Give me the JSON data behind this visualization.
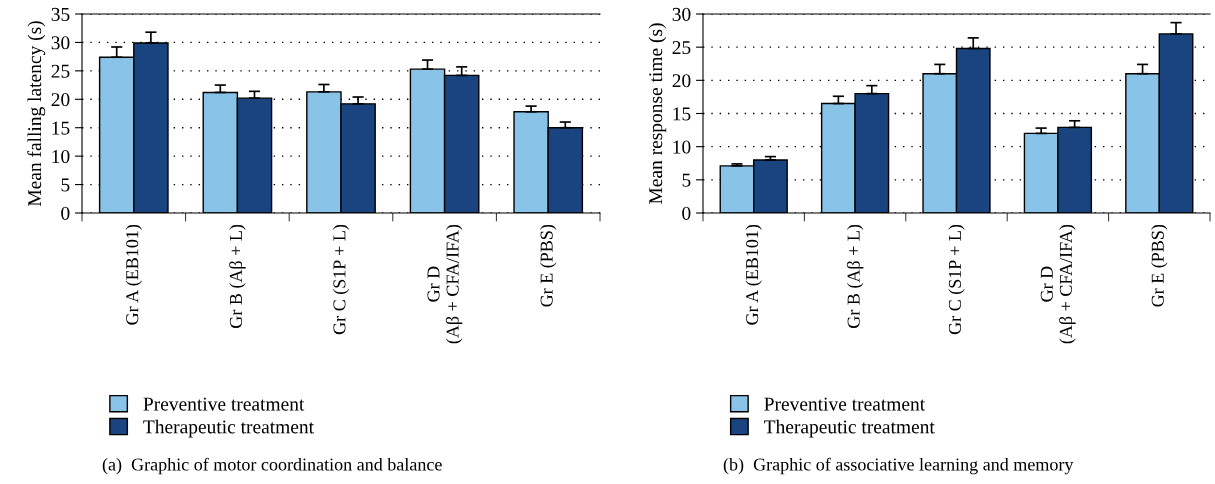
{
  "chart_data": [
    {
      "type": "bar",
      "ylabel": "Mean falling latency (s)",
      "categories": [
        "Gr A (EB101)",
        "Gr B (Aβ + L)",
        "Gr C (S1P + L)",
        "Gr D\n(Aβ + CFA/IFA)",
        "Gr E (PBS)"
      ],
      "series": [
        {
          "name": "Preventive treatment",
          "color": "#89c3e8",
          "values": [
            27.4,
            21.2,
            21.3,
            25.3,
            17.8
          ],
          "errors": [
            1.8,
            1.3,
            1.3,
            1.6,
            1.0
          ]
        },
        {
          "name": "Therapeutic treatment",
          "color": "#1a4480",
          "values": [
            29.9,
            20.2,
            19.2,
            24.2,
            15.0
          ],
          "errors": [
            1.9,
            1.2,
            1.2,
            1.5,
            1.0
          ]
        }
      ],
      "ylim": [
        0,
        35
      ],
      "yticks": [
        0,
        5,
        10,
        15,
        20,
        25,
        30,
        35
      ],
      "grid": "y",
      "legend": "bottom",
      "annotations": [
        "(a)  Graphic of motor coordination and balance"
      ]
    },
    {
      "type": "bar",
      "ylabel": "Mean response time (s)",
      "categories": [
        "Gr A (EB101)",
        "Gr B (Aβ + L)",
        "Gr C (S1P + L)",
        "Gr D\n(Aβ + CFA/IFA)",
        "Gr E (PBS)"
      ],
      "series": [
        {
          "name": "Preventive treatment",
          "color": "#89c3e8",
          "values": [
            7.1,
            16.5,
            21.0,
            12.0,
            21.0
          ],
          "errors": [
            0.3,
            1.1,
            1.4,
            0.8,
            1.4
          ]
        },
        {
          "name": "Therapeutic treatment",
          "color": "#1a4480",
          "values": [
            8.0,
            18.0,
            24.8,
            12.9,
            27.0
          ],
          "errors": [
            0.5,
            1.2,
            1.6,
            1.0,
            1.7
          ]
        }
      ],
      "ylim": [
        0,
        30
      ],
      "yticks": [
        0,
        5,
        10,
        15,
        20,
        25,
        30
      ],
      "grid": "y",
      "legend": "bottom",
      "annotations": [
        "(b)  Graphic of associative learning and memory"
      ]
    }
  ]
}
